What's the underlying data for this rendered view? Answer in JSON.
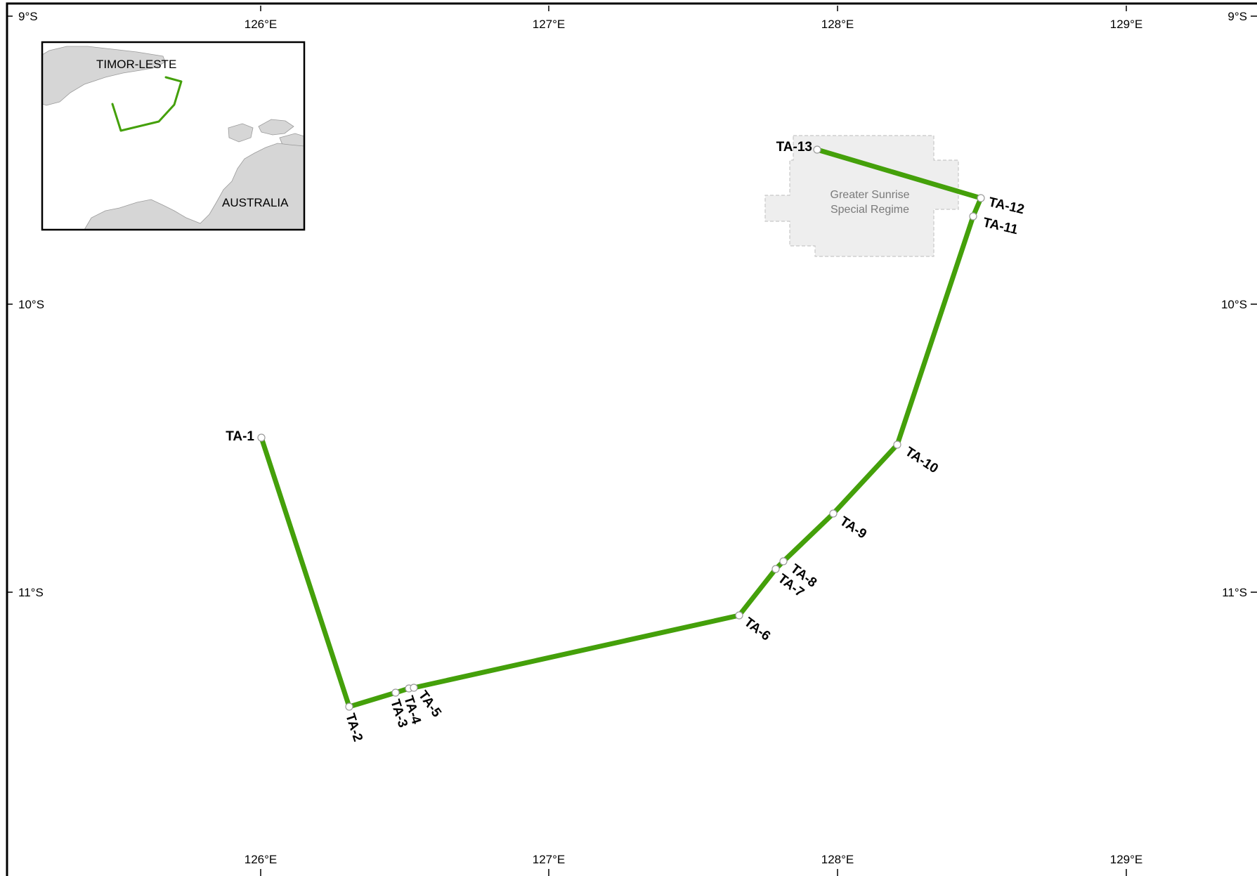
{
  "map": {
    "grid": {
      "lon_labels": [
        "126°E",
        "127°E",
        "128°E",
        "129°E"
      ],
      "lat_labels": [
        "9°S",
        "10°S",
        "11°S"
      ]
    },
    "line_color": "#44a00a",
    "points": [
      {
        "id": "TA-1",
        "label": "TA-1"
      },
      {
        "id": "TA-2",
        "label": "TA-2"
      },
      {
        "id": "TA-3",
        "label": "TA-3"
      },
      {
        "id": "TA-4",
        "label": "TA-4"
      },
      {
        "id": "TA-5",
        "label": "TA-5"
      },
      {
        "id": "TA-6",
        "label": "TA-6"
      },
      {
        "id": "TA-7",
        "label": "TA-7"
      },
      {
        "id": "TA-8",
        "label": "TA-8"
      },
      {
        "id": "TA-9",
        "label": "TA-9"
      },
      {
        "id": "TA-10",
        "label": "TA-10"
      },
      {
        "id": "TA-11",
        "label": "TA-11"
      },
      {
        "id": "TA-12",
        "label": "TA-12"
      },
      {
        "id": "TA-13",
        "label": "TA-13"
      }
    ],
    "regime": {
      "line1": "Greater Sunrise",
      "line2": "Special Regime"
    },
    "inset": {
      "timor_label": "TIMOR-LESTE",
      "australia_label": "AUSTRALIA"
    }
  }
}
